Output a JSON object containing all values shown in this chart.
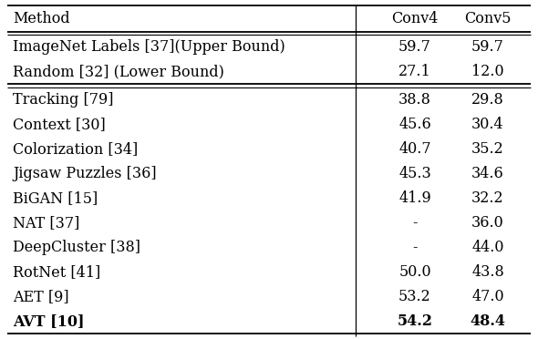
{
  "col_headers": [
    "Method",
    "Conv4",
    "Conv5"
  ],
  "section1": [
    [
      "ImageNet Labels [37](Upper Bound)",
      "59.7",
      "59.7"
    ],
    [
      "Random [32] (Lower Bound)",
      "27.1",
      "12.0"
    ]
  ],
  "section2": [
    [
      "Tracking [79]",
      "38.8",
      "29.8"
    ],
    [
      "Context [30]",
      "45.6",
      "30.4"
    ],
    [
      "Colorization [34]",
      "40.7",
      "35.2"
    ],
    [
      "Jigsaw Puzzles [36]",
      "45.3",
      "34.6"
    ],
    [
      "BiGAN [15]",
      "41.9",
      "32.2"
    ],
    [
      "NAT [37]",
      "-",
      "36.0"
    ],
    [
      "DeepCluster [38]",
      "-",
      "44.0"
    ],
    [
      "RotNet [41]",
      "50.0",
      "43.8"
    ],
    [
      "AET [9]",
      "53.2",
      "47.0"
    ],
    [
      "AVT [10]",
      "54.2",
      "48.4"
    ]
  ],
  "bold_last_row": true,
  "bg_color": "#ffffff",
  "line_color": "#000000",
  "font_size": 11.5
}
